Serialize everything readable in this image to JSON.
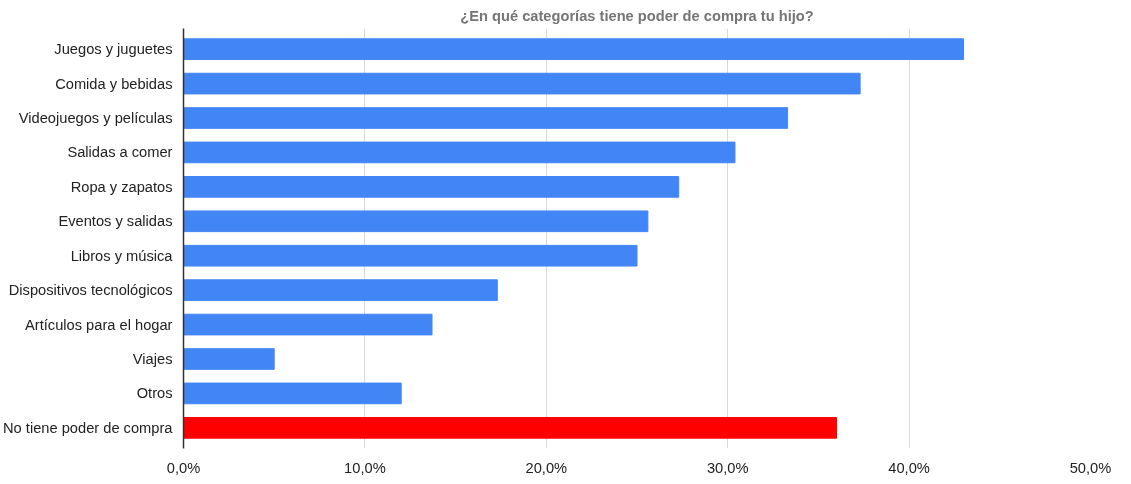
{
  "chart_data": {
    "type": "bar",
    "orientation": "horizontal",
    "title": "¿En qué categorías tiene poder de compra tu hijo?",
    "categories": [
      "Juegos y juguetes",
      "Comida y bebidas",
      "Videojuegos y películas",
      "Salidas a comer",
      "Ropa y zapatos",
      "Eventos y salidas",
      "Libros y música",
      "Dispositivos tecnológicos",
      "Artículos para el hogar",
      "Viajes",
      "Otros",
      "No tiene poder de compra"
    ],
    "values": [
      43.0,
      37.3,
      33.3,
      30.4,
      27.3,
      25.6,
      25.0,
      17.3,
      13.7,
      5.0,
      12.0,
      36.0
    ],
    "colors": [
      "#4285f4",
      "#4285f4",
      "#4285f4",
      "#4285f4",
      "#4285f4",
      "#4285f4",
      "#4285f4",
      "#4285f4",
      "#4285f4",
      "#4285f4",
      "#4285f4",
      "#ff0000"
    ],
    "xlim": [
      0,
      50
    ],
    "xticks": [
      {
        "value": 0,
        "label": "0,0%"
      },
      {
        "value": 10,
        "label": "10,0%"
      },
      {
        "value": 20,
        "label": "20,0%"
      },
      {
        "value": 30,
        "label": "30,0%"
      },
      {
        "value": 40,
        "label": "40,0%"
      },
      {
        "value": 50,
        "label": "50,0%"
      }
    ],
    "grid": "x"
  }
}
